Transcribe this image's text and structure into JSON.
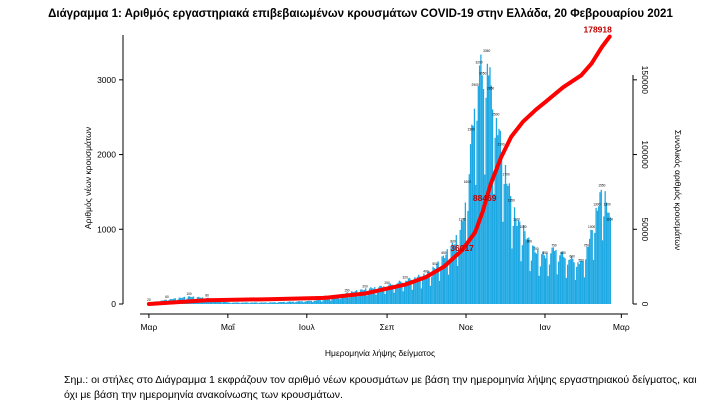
{
  "title": "Διάγραμμα 1: Αριθμός εργαστηριακά επιβεβαιωμένων κρουσμάτων COVID-19 στην Ελλάδα, 20 Φεβρουαρίου 2021",
  "note": "Σημ.: οι στήλες στο Διάγραμμα 1 εκφράζουν τον αριθμό νέων κρουσμάτων με βάση την ημερομηνία λήψης εργαστηριακού δείγματος, και όχι με βάση την ημερομηνία ανακοίνωσης των κρουσμάτων.",
  "chart_data": {
    "type": "bar",
    "xlabel": "Ημερομηνία λήψης δείγματος",
    "ylabel": "Αριθμός νέων κρουσμάτων",
    "y2label": "Συνολικός αριθμός κρουσμάτων",
    "x_ticks": [
      "Μαρ",
      "Μαΐ",
      "Ιουλ",
      "Σεπ",
      "Νοε",
      "Ιαν",
      "Μαρ"
    ],
    "ylim": [
      0,
      3600
    ],
    "y_ticks": [
      0,
      1000,
      2000,
      3000
    ],
    "y2lim": [
      0,
      180000
    ],
    "y2_ticks": [
      0,
      50000,
      100000,
      150000
    ],
    "grid": false,
    "colors": {
      "bars": "#1ca8e3",
      "cumulative": "#ff0000",
      "callout": "#c00000"
    },
    "series": [
      {
        "type": "bar",
        "x": [
          "2020-03-01",
          "2020-03-15",
          "2020-04-01",
          "2020-04-15",
          "2020-05-01",
          "2020-05-15",
          "2020-06-01",
          "2020-06-15",
          "2020-07-01",
          "2020-07-15",
          "2020-08-01",
          "2020-08-15",
          "2020-09-01",
          "2020-09-15",
          "2020-10-01",
          "2020-10-08",
          "2020-10-15",
          "2020-10-22",
          "2020-10-29",
          "2020-11-02",
          "2020-11-05",
          "2020-11-08",
          "2020-11-11",
          "2020-11-14",
          "2020-11-17",
          "2020-11-20",
          "2020-11-24",
          "2020-11-28",
          "2020-12-02",
          "2020-12-06",
          "2020-12-10",
          "2020-12-15",
          "2020-12-20",
          "2020-12-25",
          "2021-01-01",
          "2021-01-08",
          "2021-01-15",
          "2021-01-22",
          "2021-01-29",
          "2021-02-02",
          "2021-02-06",
          "2021-02-10",
          "2021-02-14",
          "2021-02-18",
          "2021-02-20"
        ],
        "values": [
          20,
          60,
          100,
          80,
          20,
          20,
          20,
          30,
          40,
          60,
          150,
          200,
          250,
          320,
          400,
          500,
          650,
          800,
          1100,
          1600,
          2300,
          2900,
          3200,
          3050,
          3350,
          2850,
          2500,
          2100,
          1700,
          1350,
          1100,
          1000,
          800,
          700,
          650,
          750,
          650,
          600,
          550,
          750,
          1000,
          1300,
          1550,
          1300,
          1100
        ]
      },
      {
        "type": "line",
        "name": "cumulative",
        "x": [
          "2020-03-01",
          "2020-04-15",
          "2020-06-01",
          "2020-07-15",
          "2020-08-15",
          "2020-09-15",
          "2020-10-01",
          "2020-10-15",
          "2020-10-29",
          "2020-11-08",
          "2020-11-14",
          "2020-11-20",
          "2020-11-28",
          "2020-12-06",
          "2020-12-15",
          "2020-12-25",
          "2021-01-01",
          "2021-01-15",
          "2021-01-29",
          "2021-02-06",
          "2021-02-14",
          "2021-02-20"
        ],
        "values": [
          0,
          2500,
          3200,
          4100,
          7000,
          13000,
          18000,
          25000,
          36000,
          48000,
          62000,
          80000,
          98000,
          112000,
          122000,
          130000,
          135000,
          145000,
          153000,
          161000,
          172000,
          178918
        ]
      }
    ],
    "annotations": [
      "178918",
      "88469",
      "36017"
    ]
  }
}
